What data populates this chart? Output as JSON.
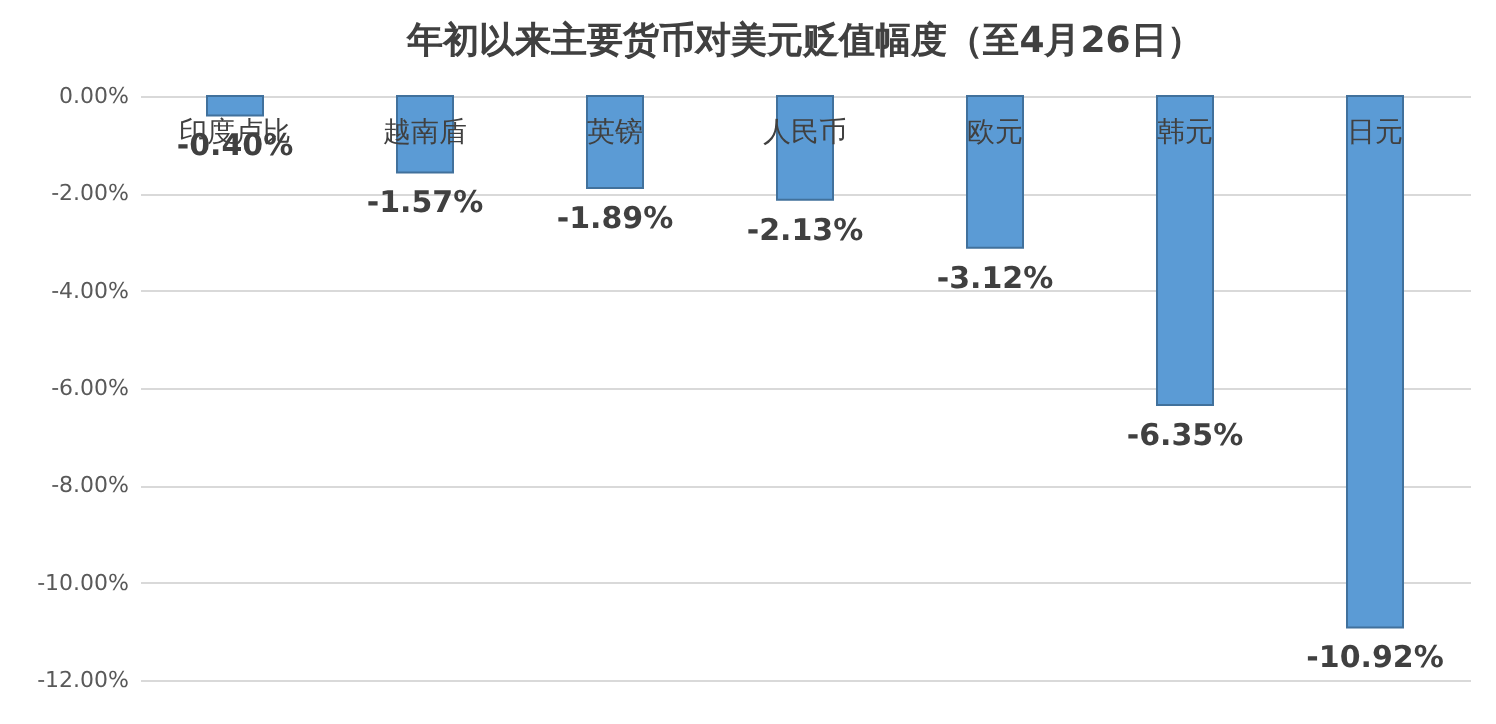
{
  "chart_data": {
    "type": "bar",
    "title": "年初以来主要货币对美元贬值幅度（至4月26日）",
    "categories": [
      "印度卢比",
      "越南盾",
      "英镑",
      "人民币",
      "欧元",
      "韩元",
      "日元"
    ],
    "values": [
      -0.4,
      -1.57,
      -1.89,
      -2.13,
      -3.12,
      -6.35,
      -10.92
    ],
    "value_labels": [
      "-0.40%",
      "-1.57%",
      "-1.89%",
      "-2.13%",
      "-3.12%",
      "-6.35%",
      "-10.92%"
    ],
    "color": "#5b9bd5",
    "ylim": [
      -12,
      0
    ],
    "yticks": [
      {
        "value": 0,
        "label": "0.00%"
      },
      {
        "value": -2,
        "label": "-2.00%"
      },
      {
        "value": -4,
        "label": "-4.00%"
      },
      {
        "value": -6,
        "label": "-6.00%"
      },
      {
        "value": -8,
        "label": "-8.00%"
      },
      {
        "value": -10,
        "label": "-10.00%"
      },
      {
        "value": -12,
        "label": "-12.00%"
      }
    ],
    "grid": "y"
  }
}
